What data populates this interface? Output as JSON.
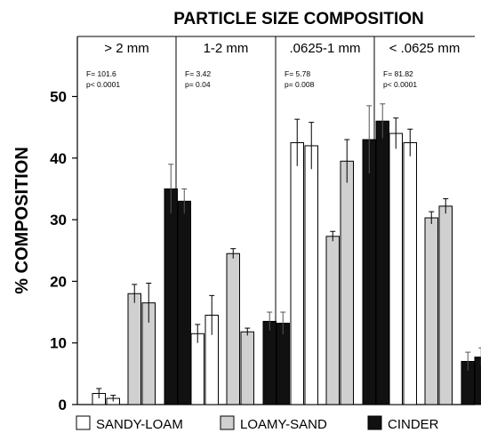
{
  "chart_data": {
    "type": "bar",
    "title": "PARTICLE SIZE COMPOSITION",
    "xlabel": "",
    "ylabel": "% COMPOSITION",
    "ylim": [
      0,
      55
    ],
    "yticks": [
      0,
      10,
      20,
      30,
      40,
      50
    ],
    "ytick_labels": [
      "0",
      "10",
      "20",
      "30",
      "40",
      "50"
    ],
    "grid": false,
    "legend_position": "bottom",
    "categories": [
      "> 2 mm",
      "1-2 mm",
      ".0625-1 mm",
      "< .0625 mm"
    ],
    "stats": [
      {
        "f": "F= 101.6",
        "p": "p< 0.0001"
      },
      {
        "f": "F= 3.42",
        "p": "p= 0.04"
      },
      {
        "f": "F= 5.78",
        "p": "p= 0.008"
      },
      {
        "f": "F= 81.82",
        "p": "p< 0.0001"
      }
    ],
    "series": [
      {
        "name": "SANDY-LOAM",
        "fill": "#ffffff",
        "values": [
          [
            1.8,
            1.0
          ],
          [
            11.5,
            14.5
          ],
          [
            42.5,
            42.0
          ],
          [
            44.0,
            42.5
          ]
        ],
        "errors": [
          [
            0.8,
            0.5
          ],
          [
            1.5,
            3.2
          ],
          [
            3.8,
            3.8
          ],
          [
            2.5,
            2.2
          ]
        ]
      },
      {
        "name": "LOAMY-SAND",
        "fill": "#d0d0d0",
        "values": [
          [
            18.0,
            16.5
          ],
          [
            24.5,
            11.8
          ],
          [
            27.3,
            39.5
          ],
          [
            30.3,
            32.2
          ]
        ],
        "errors": [
          [
            1.5,
            3.2
          ],
          [
            0.8,
            0.6
          ],
          [
            0.8,
            3.5
          ],
          [
            1.0,
            1.2
          ]
        ]
      },
      {
        "name": "CINDER",
        "fill": "#111111",
        "values": [
          [
            35.0,
            33.0
          ],
          [
            13.5,
            13.2
          ],
          [
            43.0,
            46.0
          ],
          [
            7.0,
            7.7
          ]
        ],
        "errors": [
          [
            4.0,
            2.0
          ],
          [
            1.5,
            1.8
          ],
          [
            5.5,
            2.8
          ],
          [
            1.5,
            1.5
          ]
        ]
      }
    ]
  }
}
